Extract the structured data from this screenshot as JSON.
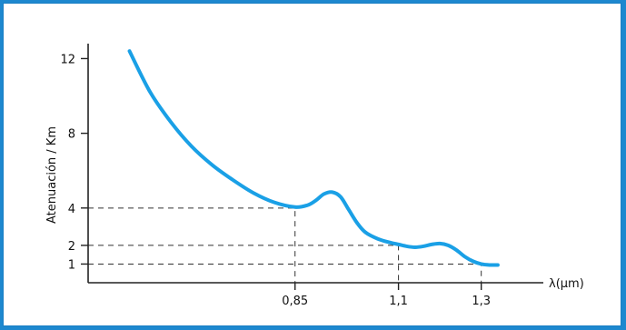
{
  "chart_data": {
    "type": "line",
    "title": "",
    "xlabel": "λ(μm)",
    "ylabel": "Atenuación / Km",
    "x_ticks": [
      {
        "value": 0.85,
        "label": "0,85"
      },
      {
        "value": 1.1,
        "label": "1,1"
      },
      {
        "value": 1.3,
        "label": "1,3"
      }
    ],
    "y_ticks": [
      {
        "value": 1,
        "label": "1"
      },
      {
        "value": 2,
        "label": "2"
      },
      {
        "value": 4,
        "label": "4"
      },
      {
        "value": 8,
        "label": "8"
      },
      {
        "value": 12,
        "label": "12"
      }
    ],
    "xlim": [
      0.35,
      1.45
    ],
    "ylim": [
      0,
      12.8
    ],
    "guides": [
      {
        "x": 0.85,
        "y": 4
      },
      {
        "x": 1.1,
        "y": 2
      },
      {
        "x": 1.3,
        "y": 1
      }
    ],
    "series": [
      {
        "color": "#1aa0e6",
        "x": [
          0.45,
          0.5,
          0.55,
          0.6,
          0.65,
          0.7,
          0.75,
          0.8,
          0.85,
          0.88,
          0.9,
          0.92,
          0.94,
          0.96,
          0.98,
          1.0,
          1.02,
          1.05,
          1.08,
          1.1,
          1.12,
          1.14,
          1.16,
          1.18,
          1.2,
          1.22,
          1.24,
          1.26,
          1.28,
          1.3,
          1.32,
          1.34
        ],
        "y": [
          12.4,
          10.2,
          8.6,
          7.3,
          6.3,
          5.5,
          4.8,
          4.3,
          4.05,
          4.15,
          4.4,
          4.75,
          4.85,
          4.6,
          3.9,
          3.2,
          2.7,
          2.35,
          2.15,
          2.05,
          1.95,
          1.9,
          1.95,
          2.05,
          2.1,
          2.0,
          1.75,
          1.4,
          1.15,
          1.0,
          0.95,
          0.95
        ]
      }
    ]
  }
}
